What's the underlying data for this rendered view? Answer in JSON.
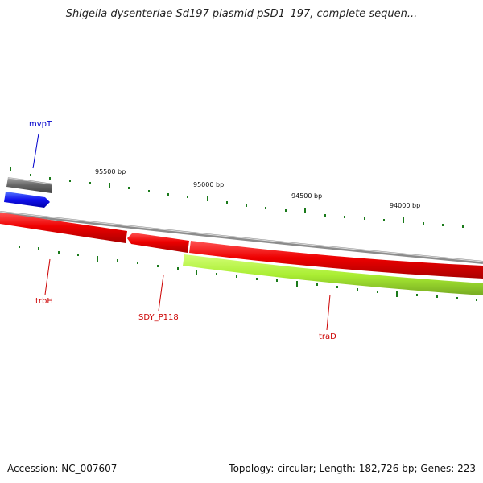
{
  "title": "Shigella dysenteriae Sd197 plasmid pSD1_197, complete sequen...",
  "footer": {
    "accession": "Accession: NC_007607",
    "summary": "Topology: circular; Length: 182,726 bp; Genes: 223"
  },
  "bp_labels": [
    {
      "text": "95500 bp",
      "bp": 95500
    },
    {
      "text": "95000 bp",
      "bp": 95000
    },
    {
      "text": "94500 bp",
      "bp": 94500
    },
    {
      "text": "94000 bp",
      "bp": 94000
    }
  ],
  "genes": [
    {
      "name": "mvpT",
      "color": "#0000cc",
      "strand": "forward"
    },
    {
      "name": "trbH",
      "color": "#cc0000",
      "strand": "reverse"
    },
    {
      "name": "SDY_P118",
      "color": "#cc0000",
      "strand": "reverse"
    },
    {
      "name": "traD",
      "color": "#cc0000",
      "strand": "reverse"
    }
  ],
  "colors": {
    "backbone": "#8c8c8c",
    "tick": "#1a7a1a",
    "gene_red": "#ee0000",
    "gene_blue": "#1111ee",
    "gene_green": "#aaee33",
    "gene_gray": "#666666"
  }
}
